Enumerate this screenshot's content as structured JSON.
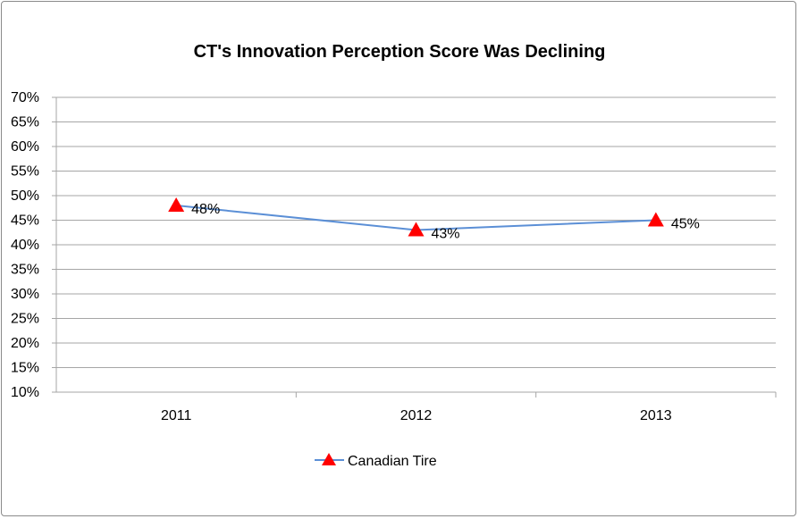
{
  "chart_data": {
    "type": "line",
    "title": "CT's Innovation Perception Score Was Declining",
    "categories": [
      "2011",
      "2012",
      "2013"
    ],
    "series": [
      {
        "name": "Canadian Tire",
        "values": [
          48,
          43,
          45
        ],
        "labels": [
          "48%",
          "43%",
          "45%"
        ],
        "color": "#5b8fd6",
        "marker_color": "#ff0000"
      }
    ],
    "ylim": [
      10,
      70
    ],
    "ytick_step": 5,
    "ytick_labels": [
      "10%",
      "15%",
      "20%",
      "25%",
      "30%",
      "35%",
      "40%",
      "45%",
      "50%",
      "55%",
      "60%",
      "65%",
      "70%"
    ],
    "xlabel": "",
    "ylabel": "",
    "grid": true,
    "legend_position": "bottom"
  }
}
